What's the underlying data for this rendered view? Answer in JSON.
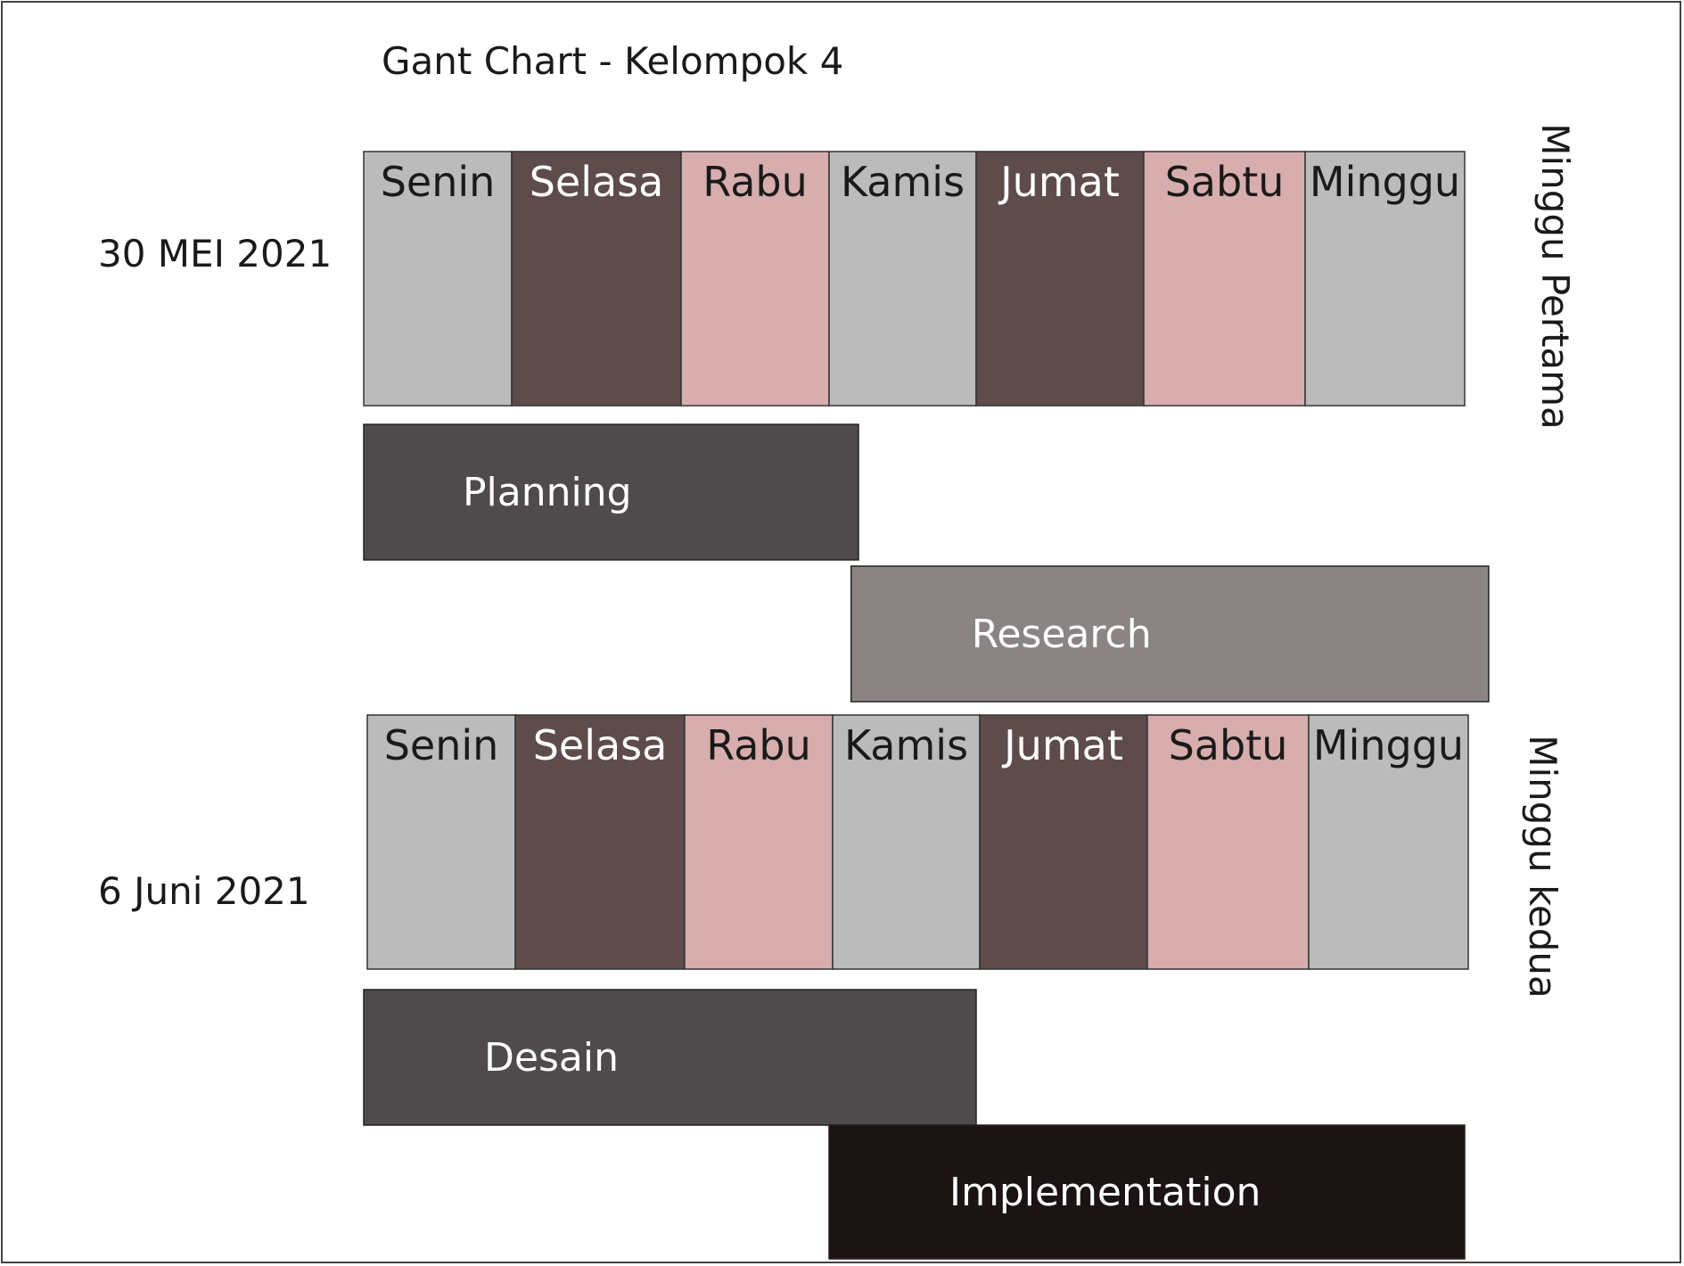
{
  "chart_data": {
    "type": "gantt",
    "title": "Gant Chart - Kelompok 4",
    "weeks": [
      {
        "label": "Minggu Pertama",
        "date": "30 MEI 2021",
        "days": [
          "Senin",
          "Selasa",
          "Rabu",
          "Kamis",
          "Jumat",
          "Sabtu",
          "Minggu"
        ],
        "tasks": [
          {
            "name": "Planning",
            "start": 0,
            "end": 3.2,
            "color": "#4f4b4c"
          },
          {
            "name": "Research",
            "start": 3.15,
            "end": 7.15,
            "color": "#8a8584"
          }
        ]
      },
      {
        "label": "Minggu kedua",
        "date": "6 Juni 2021",
        "days": [
          "Senin",
          "Selasa",
          "Rabu",
          "Kamis",
          "Jumat",
          "Sabtu",
          "Minggu"
        ],
        "tasks": [
          {
            "name": "Desain",
            "start": 0,
            "end": 4.0,
            "color": "#4f4b4c"
          },
          {
            "name": "Implementation",
            "start": 3.0,
            "end": 7.0,
            "color": "#1c1314"
          }
        ]
      }
    ],
    "day_colors": [
      "#bbbbbb",
      "#5e4b4c",
      "#d8adae",
      "#bbbbbb",
      "#5e4b4c",
      "#d8adae",
      "#bbbbbb"
    ],
    "day_text_colors": [
      "#1a1a1a",
      "#ffffff",
      "#1a1a1a",
      "#1a1a1a",
      "#ffffff",
      "#1a1a1a",
      "#1a1a1a"
    ]
  }
}
